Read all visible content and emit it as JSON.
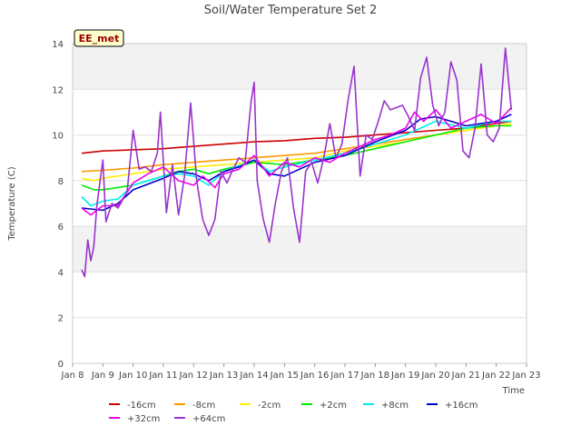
{
  "chart_data": {
    "type": "line",
    "title": "Soil/Water Temperature Set 2",
    "xlabel": "Time",
    "ylabel": "Temperature (C)",
    "xlim": [
      8,
      23
    ],
    "ylim": [
      0,
      14
    ],
    "x_ticks": [
      8,
      9,
      10,
      11,
      12,
      13,
      14,
      15,
      16,
      17,
      18,
      19,
      20,
      21,
      22,
      23
    ],
    "x_tick_labels": [
      "Jan 8",
      "Jan 9",
      "Jan 10",
      "Jan 11",
      "Jan 12",
      "Jan 13",
      "Jan 14",
      "Jan 15",
      "Jan 16",
      "Jan 17",
      "Jan 18",
      "Jan 19",
      "Jan 20",
      "Jan 21",
      "Jan 22",
      "Jan 23"
    ],
    "y_ticks": [
      0,
      2,
      4,
      6,
      8,
      10,
      12,
      14
    ],
    "grid": true,
    "banded_background": true,
    "annotation": "EE_met",
    "legend_position": "bottom",
    "series": [
      {
        "name": "-16cm",
        "color": "#cc0000",
        "x": [
          8.3,
          9,
          10,
          11,
          12,
          13,
          14,
          15,
          16,
          17,
          18,
          19,
          20,
          21,
          22,
          22.5
        ],
        "y": [
          9.2,
          9.3,
          9.35,
          9.4,
          9.5,
          9.6,
          9.7,
          9.75,
          9.85,
          9.9,
          10.0,
          10.1,
          10.2,
          10.3,
          10.5,
          10.6
        ]
      },
      {
        "name": "-8cm",
        "color": "#ff9900",
        "x": [
          8.3,
          9,
          10,
          11,
          12,
          13,
          14,
          15,
          16,
          17,
          18,
          19,
          20,
          21,
          22,
          22.5
        ],
        "y": [
          8.4,
          8.45,
          8.55,
          8.7,
          8.8,
          8.9,
          9.0,
          9.1,
          9.2,
          9.4,
          9.6,
          9.8,
          10.0,
          10.2,
          10.4,
          10.5
        ]
      },
      {
        "name": "-2cm",
        "color": "#ffee00",
        "x": [
          8.3,
          8.7,
          9,
          10,
          11,
          12,
          13,
          14,
          15,
          16,
          17,
          18,
          19,
          20,
          21,
          22,
          22.5
        ],
        "y": [
          8.1,
          8.0,
          8.1,
          8.3,
          8.5,
          8.6,
          8.7,
          8.8,
          8.9,
          9.0,
          9.3,
          9.5,
          9.7,
          10.0,
          10.2,
          10.4,
          10.5
        ]
      },
      {
        "name": "+2cm",
        "color": "#00ee00",
        "x": [
          8.3,
          8.7,
          9,
          9.5,
          10,
          11,
          11.5,
          12,
          12.5,
          13,
          14,
          15,
          16,
          17,
          18,
          19,
          20,
          21,
          22,
          22.5
        ],
        "y": [
          7.8,
          7.6,
          7.6,
          7.7,
          7.8,
          8.2,
          8.4,
          8.5,
          8.3,
          8.5,
          8.8,
          8.7,
          8.9,
          9.1,
          9.4,
          9.7,
          10.0,
          10.3,
          10.4,
          10.4
        ]
      },
      {
        "name": "+8cm",
        "color": "#00eeee",
        "x": [
          8.3,
          8.6,
          9,
          9.5,
          10,
          11,
          11.5,
          12,
          12.5,
          13,
          14,
          14.5,
          15,
          16,
          17,
          18,
          19,
          20,
          21,
          22,
          22.5
        ],
        "y": [
          7.3,
          6.9,
          7.1,
          7.2,
          7.8,
          8.2,
          8.3,
          8.2,
          7.8,
          8.4,
          8.9,
          8.4,
          8.6,
          8.9,
          9.2,
          9.6,
          10.0,
          10.6,
          10.3,
          10.6,
          10.6
        ]
      },
      {
        "name": "+16cm",
        "color": "#0000cc",
        "x": [
          8.3,
          9,
          9.5,
          10,
          11,
          11.5,
          12,
          12.5,
          13,
          13.5,
          14,
          14.5,
          15,
          16,
          17,
          18,
          19,
          19.5,
          20,
          21,
          22,
          22.5
        ],
        "y": [
          6.8,
          6.7,
          7.0,
          7.6,
          8.1,
          8.4,
          8.3,
          8.0,
          8.4,
          8.6,
          8.9,
          8.3,
          8.2,
          8.8,
          9.1,
          9.7,
          10.2,
          10.7,
          10.8,
          10.4,
          10.6,
          10.9
        ]
      },
      {
        "name": "+32cm",
        "color": "#ee00ee",
        "x": [
          8.3,
          8.6,
          9,
          9.5,
          10,
          10.5,
          11,
          11.5,
          12,
          12.3,
          12.7,
          13,
          13.5,
          14,
          14.5,
          15,
          15.5,
          16,
          16.5,
          17,
          17.5,
          18,
          18.5,
          19,
          19.3,
          19.6,
          20,
          20.5,
          21,
          21.5,
          22,
          22.5
        ],
        "y": [
          6.8,
          6.5,
          6.9,
          6.9,
          7.9,
          8.3,
          8.6,
          8.0,
          7.8,
          8.2,
          7.7,
          8.3,
          8.5,
          9.1,
          8.2,
          8.8,
          8.6,
          9.0,
          8.8,
          9.2,
          9.5,
          9.8,
          10.0,
          10.3,
          11.0,
          10.6,
          11.1,
          10.3,
          10.6,
          10.9,
          10.5,
          11.2
        ]
      },
      {
        "name": "+64cm",
        "color": "#9933cc",
        "x": [
          8.3,
          8.4,
          8.5,
          8.6,
          8.7,
          8.8,
          9.0,
          9.1,
          9.3,
          9.5,
          9.8,
          10.0,
          10.2,
          10.4,
          10.6,
          10.8,
          10.9,
          11.1,
          11.3,
          11.5,
          11.7,
          11.9,
          12.1,
          12.3,
          12.5,
          12.7,
          12.9,
          13.1,
          13.3,
          13.5,
          13.7,
          13.9,
          14.0,
          14.1,
          14.3,
          14.5,
          14.7,
          14.9,
          15.1,
          15.3,
          15.5,
          15.7,
          15.9,
          16.1,
          16.3,
          16.5,
          16.7,
          16.9,
          17.1,
          17.3,
          17.5,
          17.7,
          17.9,
          18.1,
          18.3,
          18.5,
          18.7,
          18.9,
          19.1,
          19.3,
          19.5,
          19.7,
          19.9,
          20.1,
          20.3,
          20.5,
          20.7,
          20.9,
          21.1,
          21.3,
          21.5,
          21.7,
          21.9,
          22.1,
          22.3,
          22.5
        ],
        "y": [
          4.1,
          3.8,
          5.4,
          4.5,
          5.1,
          6.9,
          8.9,
          6.2,
          7.0,
          6.8,
          7.5,
          10.2,
          8.5,
          8.6,
          8.4,
          9.2,
          11.0,
          6.6,
          8.7,
          6.5,
          8.2,
          11.4,
          8.0,
          6.3,
          5.6,
          6.3,
          8.4,
          7.9,
          8.5,
          9.0,
          8.8,
          11.5,
          12.3,
          8.0,
          6.3,
          5.3,
          7.0,
          8.4,
          9.0,
          6.8,
          5.3,
          8.4,
          8.8,
          7.9,
          9.0,
          10.5,
          9.0,
          9.6,
          11.5,
          13.0,
          8.2,
          10.0,
          9.8,
          10.6,
          11.5,
          11.1,
          11.2,
          11.3,
          10.8,
          10.2,
          12.5,
          13.4,
          11.3,
          10.4,
          11.0,
          13.2,
          12.4,
          9.3,
          9.0,
          10.3,
          13.1,
          10.0,
          9.7,
          10.3,
          13.8,
          11.1
        ]
      }
    ]
  }
}
